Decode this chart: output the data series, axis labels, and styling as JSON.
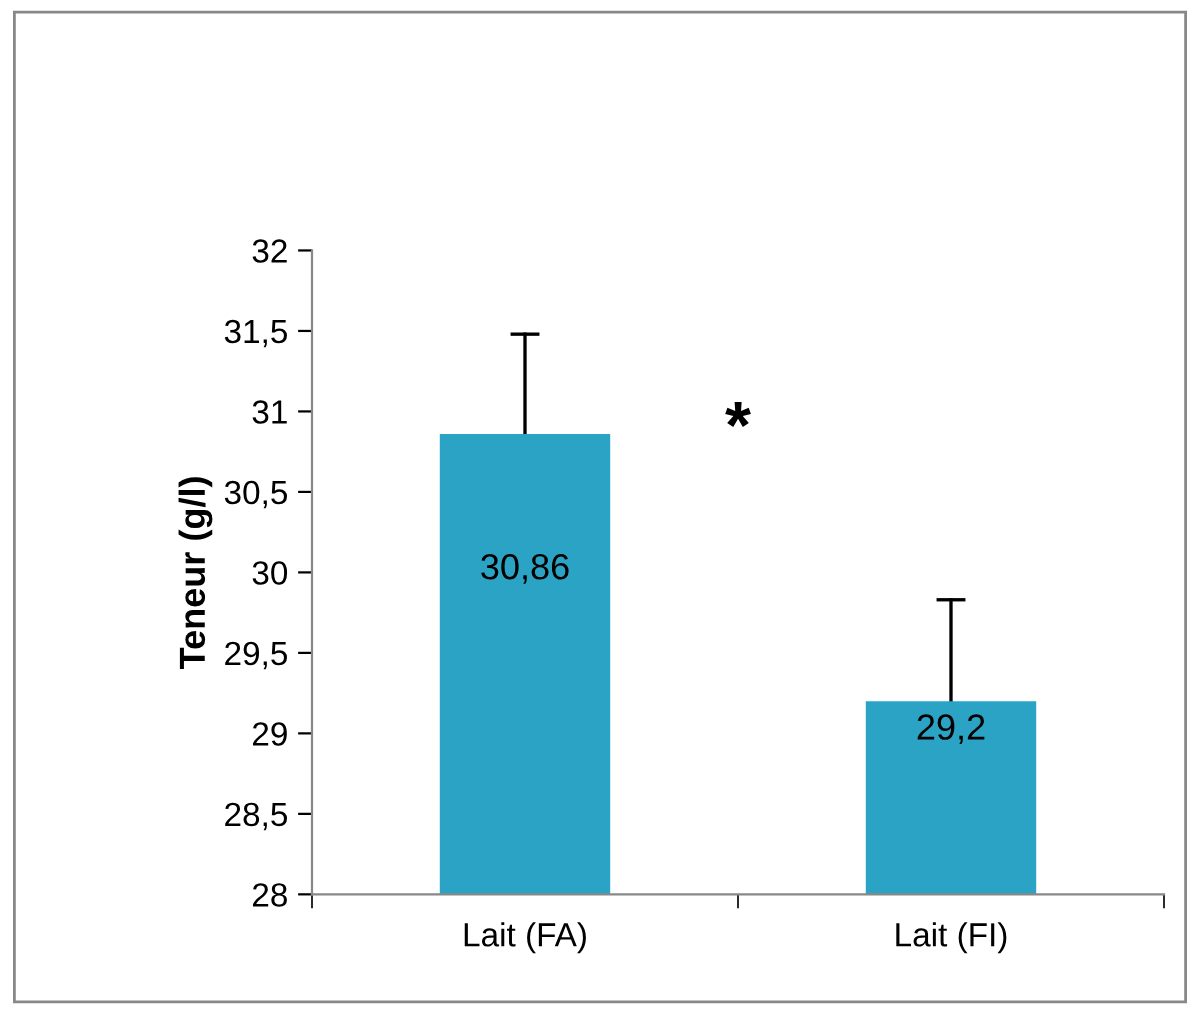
{
  "chart_data": {
    "type": "bar",
    "ylabel": "Teneur (g/l)",
    "categories": [
      "Lait (FA)",
      "Lait (FI)"
    ],
    "values": [
      30.86,
      29.2
    ],
    "color": "#2aa3c4",
    "value_labels": [
      "30,86",
      "29,2"
    ],
    "errors": [
      [
        30.86,
        31.48
      ],
      [
        29.2,
        29.83
      ]
    ],
    "annotations": [
      "*"
    ],
    "ylim": [
      28,
      32
    ],
    "yticks": [
      28,
      {
        "value": 28.5,
        "label": "28,5"
      },
      29,
      {
        "value": 29.5,
        "label": "29,5"
      },
      30,
      {
        "value": 30.5,
        "label": "30,5"
      },
      31,
      {
        "value": 31.5,
        "label": "31,5"
      },
      32
    ],
    "grid": false
  }
}
